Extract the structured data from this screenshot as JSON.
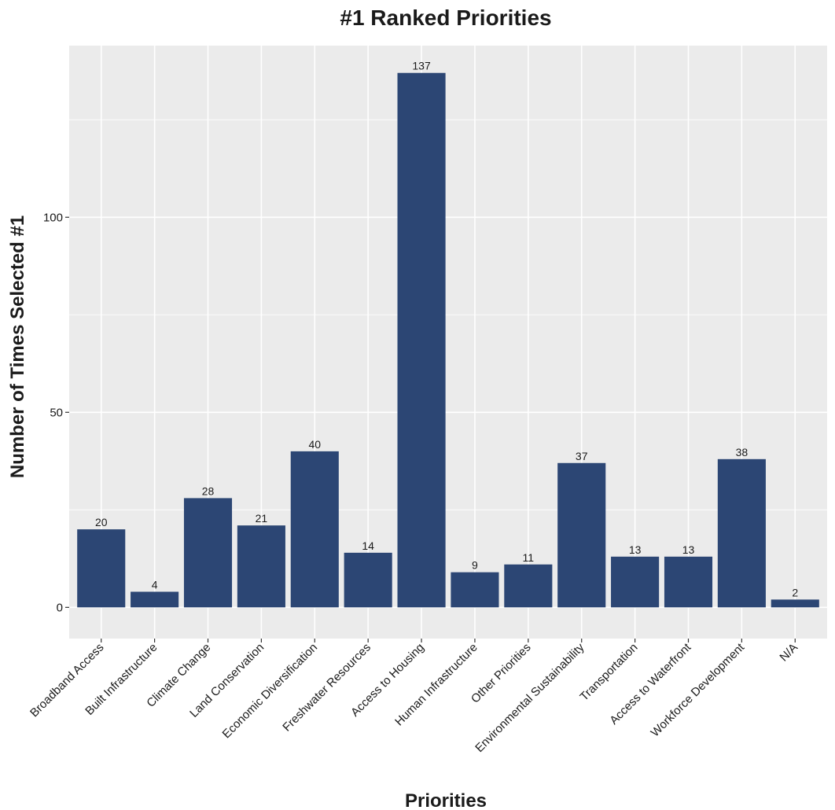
{
  "chart_data": {
    "type": "bar",
    "title": "#1 Ranked Priorities",
    "xlabel": "Priorities",
    "ylabel": "Number of Times Selected #1",
    "categories": [
      "Broadband Access",
      "Built Infrastructure",
      "Climate Change",
      "Land Conservation",
      "Economic Diversification",
      "Freshwater Resources",
      "Access to Housing",
      "Human Infrastructure",
      "Other Priorities",
      "Environmental Sustainability",
      "Transportation",
      "Access to Waterfront",
      "Workforce Development",
      "N/A"
    ],
    "values": [
      20,
      4,
      28,
      21,
      40,
      14,
      137,
      9,
      11,
      37,
      13,
      13,
      38,
      2
    ],
    "ylim": [
      -8,
      144
    ],
    "yticks": [
      0,
      50,
      100
    ],
    "grid": true,
    "legend": "none",
    "colors": {
      "bar": "#2c4674",
      "panel": "#ebebeb",
      "grid": "#ffffff"
    }
  }
}
